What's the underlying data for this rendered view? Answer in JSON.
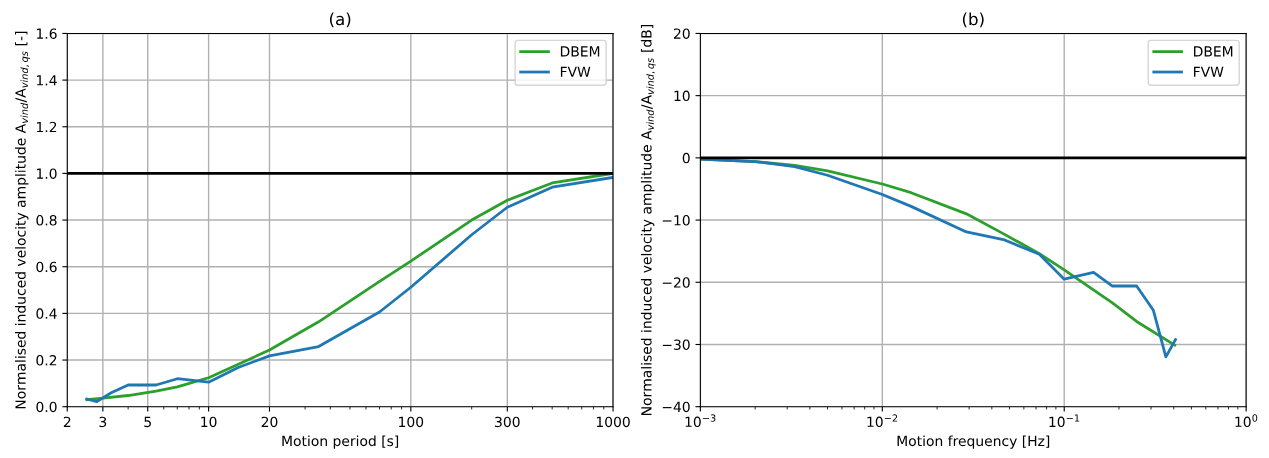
{
  "chart_data": [
    {
      "type": "line",
      "title": "(a)",
      "xlabel": "Motion period [s]",
      "ylabel": "Normalised induced velocity amplitude A$_{vind}$/A$_{vind,qs}$ [-]",
      "log": "x",
      "grid": true,
      "legend": "top right",
      "xlim": [
        2,
        1000
      ],
      "xticks": [
        2,
        3,
        5,
        10,
        20,
        100,
        300,
        1000
      ],
      "ylim": [
        0,
        1.6
      ],
      "yticks": [
        {
          "value": 0,
          "label": "0.0"
        },
        {
          "value": 0.2,
          "label": "0.2"
        },
        {
          "value": 0.4,
          "label": "0.4"
        },
        {
          "value": 0.6,
          "label": "0.6"
        },
        {
          "value": 0.8,
          "label": "0.8"
        },
        {
          "value": 1.0,
          "label": "1.0"
        },
        {
          "value": 1.2,
          "label": "1.2"
        },
        {
          "value": 1.4,
          "label": "1.4"
        },
        {
          "value": 1.6,
          "label": "1.6"
        }
      ],
      "ref_lines": [
        {
          "axis": "y",
          "value": 1.0,
          "label": null,
          "color": "#000000"
        }
      ],
      "series": [
        {
          "name": "DBEM",
          "color": "#2ca02c",
          "x": [
            2.5,
            3,
            4,
            5.5,
            7,
            10,
            20,
            35,
            68,
            100,
            200,
            300,
            500,
            1000
          ],
          "values": [
            0.03,
            0.037,
            0.048,
            0.067,
            0.085,
            0.124,
            0.243,
            0.364,
            0.53,
            0.624,
            0.8,
            0.885,
            0.959,
            1.0
          ]
        },
        {
          "name": "FVW",
          "color": "#1f77b4",
          "x": [
            2.5,
            2.8,
            3.3,
            4,
            5.5,
            7,
            10,
            14,
            20,
            35,
            70,
            100,
            200,
            300,
            500,
            1000
          ],
          "values": [
            0.033,
            0.022,
            0.06,
            0.093,
            0.093,
            0.12,
            0.105,
            0.168,
            0.218,
            0.258,
            0.406,
            0.512,
            0.737,
            0.855,
            0.941,
            0.983
          ]
        }
      ]
    },
    {
      "type": "line",
      "title": "(b)",
      "xlabel": "Motion frequency [Hz]",
      "ylabel": "Normalised induced velocity amplitude A$_{vind}$/A$_{vind,qs}$ [dB]",
      "log": "x",
      "grid": true,
      "legend": "top right",
      "xlim": [
        0.001,
        1
      ],
      "xticks": [
        {
          "value": 0.001,
          "label": "10$^{−3}$"
        },
        {
          "value": 0.01,
          "label": "10$^{−2}$"
        },
        {
          "value": 0.1,
          "label": "10$^{−1}$"
        },
        {
          "value": 1,
          "label": "10$^{0}$"
        }
      ],
      "ylim": [
        -40,
        20
      ],
      "yticks": [
        -40,
        -30,
        -20,
        -10,
        0,
        10,
        20
      ],
      "ref_lines": [
        {
          "axis": "y",
          "value": 0,
          "label": null,
          "color": "#000000"
        }
      ],
      "series": [
        {
          "name": "DBEM",
          "color": "#2ca02c",
          "x": [
            0.001,
            0.002,
            0.0033,
            0.005,
            0.01,
            0.0144,
            0.029,
            0.047,
            0.073,
            0.1,
            0.184,
            0.25,
            0.405
          ],
          "values": [
            -0.2,
            -0.6,
            -1.2,
            -2.1,
            -4.2,
            -5.6,
            -9.0,
            -12.3,
            -15.4,
            -18.0,
            -23.3,
            -26.3,
            -30.1
          ]
        },
        {
          "name": "FVW",
          "color": "#1f77b4",
          "x": [
            0.001,
            0.002,
            0.0033,
            0.005,
            0.01,
            0.0144,
            0.029,
            0.047,
            0.073,
            0.1,
            0.145,
            0.184,
            0.25,
            0.309,
            0.362,
            0.409
          ],
          "values": [
            -0.2,
            -0.6,
            -1.4,
            -2.8,
            -5.9,
            -7.8,
            -11.9,
            -13.2,
            -15.5,
            -19.5,
            -18.4,
            -20.6,
            -20.6,
            -24.5,
            -32.0,
            -29.2
          ]
        }
      ]
    }
  ]
}
